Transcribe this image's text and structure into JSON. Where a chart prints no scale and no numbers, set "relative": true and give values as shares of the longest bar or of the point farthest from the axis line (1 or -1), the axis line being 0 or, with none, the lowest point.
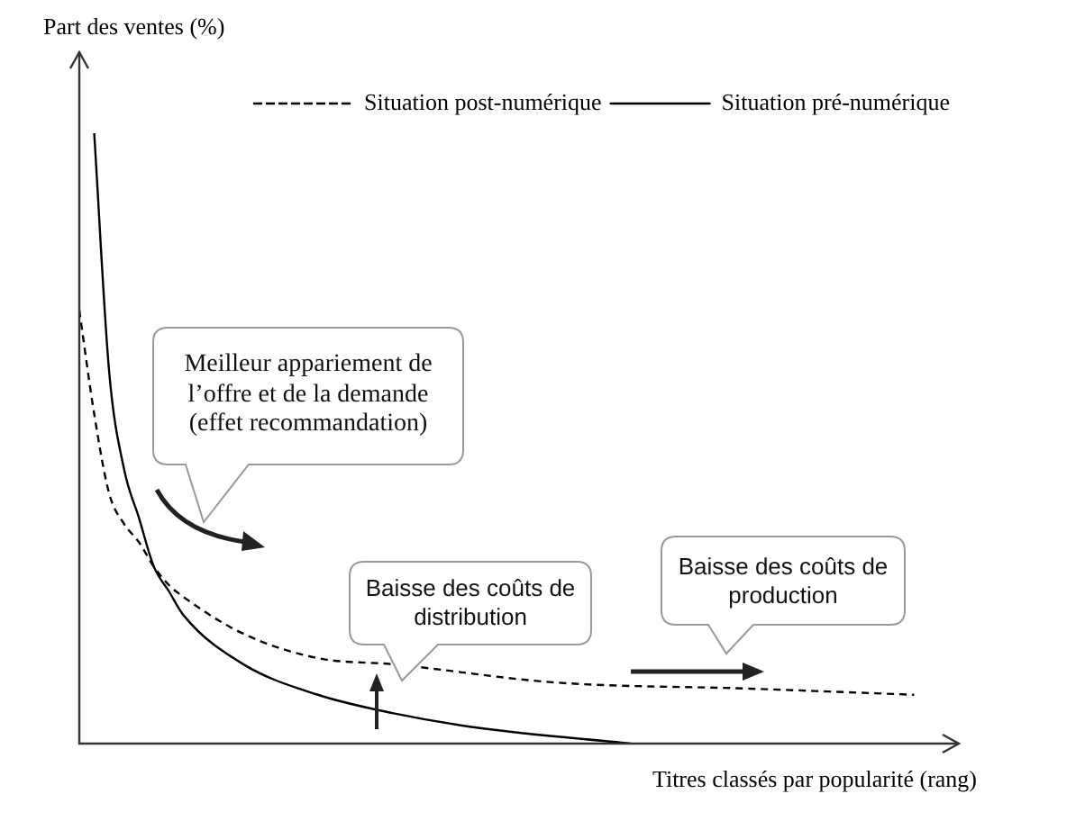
{
  "chart_data": {
    "type": "line",
    "relative": true,
    "xlabel": "Titres classés par popularité (rang)",
    "ylabel": "Part des ventes (%)",
    "categories": [
      null,
      null,
      null,
      null,
      null,
      null,
      null,
      null,
      null,
      null,
      null,
      null,
      null,
      null,
      null,
      null,
      null,
      null,
      null,
      null,
      null,
      null,
      null,
      null,
      null,
      null,
      null,
      null,
      null,
      null,
      null,
      null,
      null,
      null,
      null,
      null,
      null,
      null,
      null,
      null,
      null,
      null,
      null,
      null,
      null,
      null,
      null,
      null,
      null,
      null,
      null,
      null,
      null,
      null,
      null,
      null,
      null,
      null,
      null,
      null
    ],
    "series": [
      {
        "name": "Situation post-numérique",
        "color": "#000000",
        "line_style": "dashed",
        "values": [
          0.71,
          0.54,
          0.41,
          0.36,
          0.33,
          0.29,
          0.26,
          0.24,
          null,
          null,
          null,
          0.18,
          null,
          null,
          null,
          null,
          0.14,
          null,
          null,
          null,
          null,
          0.13,
          null,
          null,
          null,
          null,
          null,
          null,
          null,
          null,
          null,
          null,
          0.1,
          null,
          null,
          null,
          null,
          null,
          null,
          null,
          null,
          null,
          null,
          null,
          null,
          0.09,
          null,
          null,
          null,
          null,
          null,
          null,
          null,
          null,
          null,
          null,
          0.08,
          null,
          null,
          null
        ]
      },
      {
        "name": "Situation pré-numérique",
        "color": "#000000",
        "line_style": "solid",
        "values": [
          null,
          1.0,
          0.61,
          0.45,
          0.37,
          0.29,
          0.25,
          0.21,
          null,
          null,
          null,
          0.13,
          null,
          null,
          null,
          null,
          0.08,
          null,
          null,
          null,
          null,
          0.05,
          null,
          null,
          null,
          null,
          null,
          0.025,
          null,
          null,
          null,
          null,
          null,
          null,
          null,
          null,
          null,
          0.0,
          null,
          null,
          null,
          null,
          null,
          null,
          null,
          null,
          null,
          null,
          null,
          null,
          null,
          null,
          null,
          null,
          null,
          null,
          null,
          null,
          null,
          null
        ]
      }
    ],
    "annotations": [
      "Meilleur appariement de l’offre et de la demande (effet recommandation)",
      "Baisse des coûts de distribution",
      "Baisse des coûts de production"
    ],
    "legend": "top right",
    "marker": "none"
  }
}
